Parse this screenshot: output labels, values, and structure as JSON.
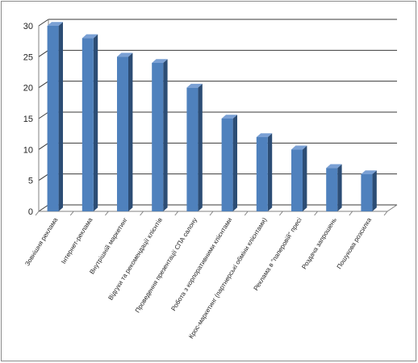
{
  "chart_data": {
    "type": "bar",
    "title": "",
    "xlabel": "",
    "ylabel": "",
    "ylim": [
      0,
      30
    ],
    "yticks": [
      0,
      5,
      10,
      15,
      20,
      25,
      30
    ],
    "grid": true,
    "legend": "none",
    "style": "3d-column",
    "categories": [
      "Зовнішня реклама",
      "Інтернет-реклама",
      "Внутрішній маркетинг",
      "Відгуки та рекомендації клієнтів",
      "Проведення презентації СПА салону",
      "Робота з корпоративними клієнтами",
      "Крос-маркетинг (партнерські обміни клієнтами)",
      "Реклама в \"паперовій\" пресі",
      "Роздача запрошень",
      "Пошукова розсилка"
    ],
    "values": [
      30,
      28,
      25,
      24,
      20,
      15,
      12,
      10,
      7,
      6
    ],
    "colors": {
      "bar_front": "#4f81bd",
      "bar_side": "#2c4d75",
      "bar_top": "#7aa0d4",
      "grid": "#3a3a3a",
      "axis": "#808080"
    }
  }
}
